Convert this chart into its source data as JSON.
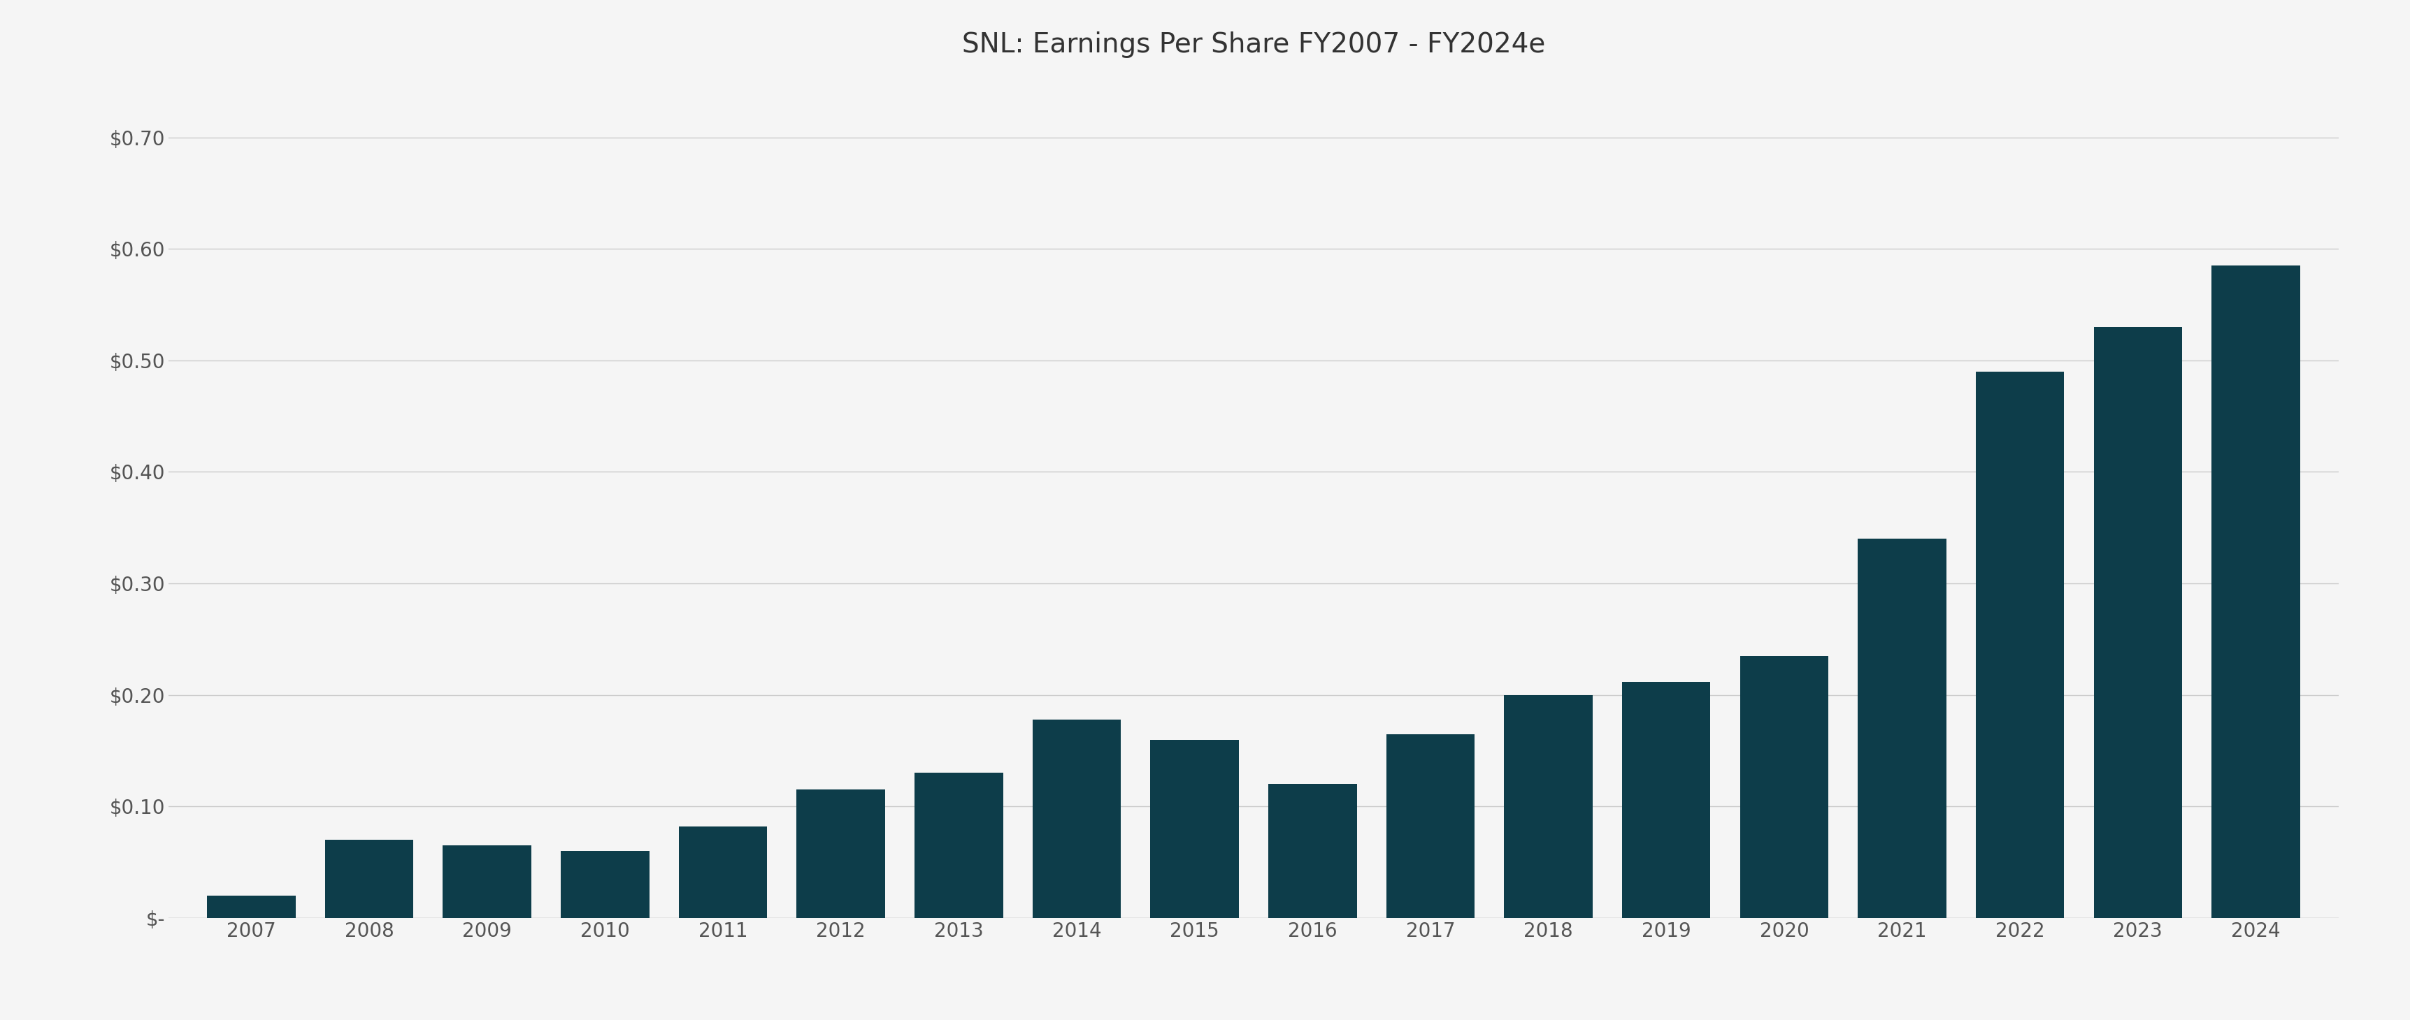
{
  "title": "SNL: Earnings Per Share FY2007 - FY2024e",
  "categories": [
    "2007",
    "2008",
    "2009",
    "2010",
    "2011",
    "2012",
    "2013",
    "2014",
    "2015",
    "2016",
    "2017",
    "2018",
    "2019",
    "2020",
    "2021",
    "2022",
    "2023",
    "2024"
  ],
  "values": [
    0.02,
    0.07,
    0.065,
    0.06,
    0.082,
    0.115,
    0.13,
    0.178,
    0.16,
    0.12,
    0.165,
    0.2,
    0.212,
    0.235,
    0.34,
    0.49,
    0.53,
    0.585
  ],
  "bar_color": "#0d3d4a",
  "background_color": "#f5f5f5",
  "grid_color": "#cccccc",
  "title_color": "#333333",
  "tick_color": "#555555",
  "ylim": [
    0,
    0.75
  ],
  "yticks": [
    0.0,
    0.1,
    0.2,
    0.3,
    0.4,
    0.5,
    0.6,
    0.7
  ],
  "ytick_labels": [
    "$-",
    "$0.10",
    "$0.20",
    "$0.30",
    "$0.40",
    "$0.50",
    "$0.60",
    "$0.70"
  ],
  "title_fontsize": 28,
  "tick_fontsize": 20,
  "bar_width": 0.75
}
